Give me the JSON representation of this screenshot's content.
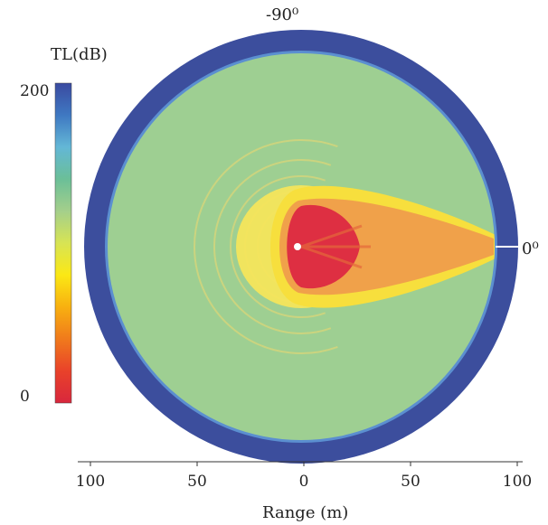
{
  "chart_data": {
    "type": "heatmap",
    "subtype": "polar-field",
    "colorbar": {
      "label": "TL(dB)",
      "min": 0,
      "max": 200,
      "tick_labels": [
        "200",
        "0"
      ],
      "colormap": [
        "#d8273d",
        "#e9422a",
        "#f07a1c",
        "#f8b010",
        "#fbe815",
        "#d7e454",
        "#a4cf8b",
        "#6bbf98",
        "#63b7d6",
        "#3f78c2",
        "#3a4aa0"
      ]
    },
    "angle_labels": [
      "-90⁰",
      "0⁰"
    ],
    "range_axis": {
      "label": "Range (m)",
      "tick_labels": [
        "100",
        "50",
        "0",
        "50",
        "100"
      ],
      "ticks": [
        -100,
        -50,
        0,
        50,
        100
      ]
    },
    "source": {
      "x": 0,
      "y": 0
    },
    "colors": {
      "outer_ring": "#3c4e9d",
      "ring_edge": "#5b8fd0",
      "field": "#9ecf92",
      "beam_yellow": "#f6e44a",
      "beam_orange": "#f0a14a",
      "beam_core": "#de2f42",
      "arcs": "#d6d57a"
    }
  }
}
